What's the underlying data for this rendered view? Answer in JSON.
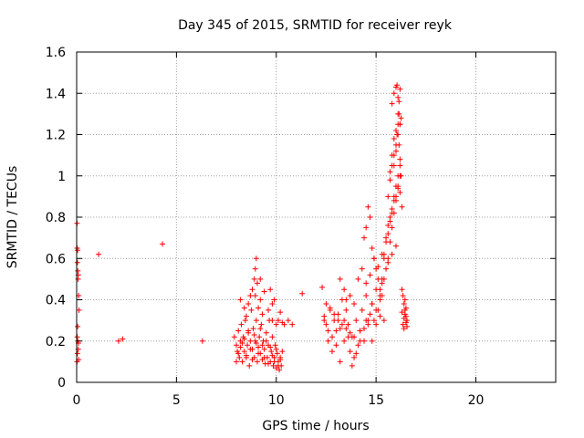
{
  "chart_data": {
    "type": "scatter",
    "title": "Day 345 of 2015, SRMTID for receiver reyk",
    "xlabel": "GPS time / hours",
    "ylabel": "SRMTID / TECUs",
    "xlim": [
      0,
      24
    ],
    "ylim": [
      0,
      1.6
    ],
    "xticks": [
      0,
      5,
      10,
      15,
      20
    ],
    "xtick_labels": [
      "0",
      "5",
      "10",
      "15",
      "20"
    ],
    "yticks": [
      0,
      0.2,
      0.4,
      0.6,
      0.8,
      1.0,
      1.2,
      1.4,
      1.6
    ],
    "ytick_labels": [
      "0",
      "0.2",
      "0.4",
      "0.6",
      "0.8",
      "1",
      "1.2",
      "1.4",
      "1.6"
    ],
    "grid": true,
    "marker": "+",
    "series": [
      {
        "name": "SRMTID",
        "color": "#ff0000",
        "x": [
          0.02,
          0.03,
          0.05,
          0.04,
          0.06,
          0.08,
          0.07,
          0.1,
          0.12,
          0.05,
          0.03,
          0.06,
          0.09,
          0.08,
          0.04,
          0.1,
          0.02,
          1.1,
          2.1,
          2.3,
          4.3,
          6.3,
          7.9,
          8.0,
          8.05,
          8.1,
          8.15,
          8.2,
          8.25,
          8.3,
          8.35,
          8.4,
          8.45,
          8.5,
          8.55,
          8.6,
          8.65,
          8.7,
          8.75,
          8.8,
          8.85,
          8.9,
          8.95,
          9.0,
          9.05,
          9.1,
          9.15,
          9.2,
          9.25,
          9.3,
          9.35,
          9.4,
          9.45,
          9.5,
          9.55,
          9.6,
          9.65,
          9.7,
          9.75,
          9.8,
          9.85,
          9.9,
          9.95,
          10.0,
          10.05,
          10.1,
          10.15,
          10.2,
          10.25,
          10.3,
          8.0,
          8.1,
          8.2,
          8.3,
          8.4,
          8.5,
          8.6,
          8.7,
          8.8,
          8.9,
          9.0,
          9.1,
          9.2,
          9.3,
          9.4,
          9.5,
          9.6,
          9.7,
          9.8,
          9.9,
          10.0,
          10.1,
          10.2,
          8.5,
          8.6,
          8.8,
          8.9,
          8.95,
          9.0,
          9.05,
          8.95,
          9.1,
          9.2,
          9.3,
          9.6,
          9.7,
          9.8,
          9.9,
          10.0,
          10.1,
          10.3,
          10.4,
          8.2,
          8.4,
          8.7,
          9.2,
          9.4,
          9.8,
          10.2,
          10.6,
          10.8,
          11.3,
          12.3,
          12.4,
          12.5,
          12.6,
          12.7,
          12.8,
          12.9,
          13.0,
          13.1,
          13.2,
          13.3,
          13.4,
          13.5,
          13.6,
          13.7,
          13.8,
          13.9,
          14.0,
          14.1,
          14.2,
          14.3,
          14.4,
          14.5,
          14.6,
          14.7,
          14.8,
          14.9,
          15.0,
          15.1,
          15.2,
          15.3,
          15.4,
          12.4,
          12.6,
          12.8,
          13.0,
          13.2,
          13.4,
          13.6,
          13.8,
          14.0,
          14.2,
          14.4,
          14.6,
          14.8,
          15.0,
          15.2,
          13.2,
          13.4,
          13.5,
          13.7,
          13.9,
          14.1,
          14.3,
          14.5,
          14.7,
          14.9,
          15.1,
          15.3,
          12.5,
          12.7,
          12.9,
          13.1,
          13.3,
          13.5,
          13.7,
          13.9,
          14.4,
          14.5,
          14.6,
          14.7,
          14.8,
          14.9,
          15.0,
          15.1,
          15.2,
          15.3,
          15.4,
          15.5,
          15.6,
          15.7,
          15.8,
          15.9,
          16.0,
          16.1,
          16.2,
          16.3,
          15.3,
          15.4,
          15.5,
          15.6,
          15.7,
          15.8,
          15.9,
          16.0,
          16.1,
          16.2,
          15.5,
          15.6,
          15.7,
          15.8,
          15.9,
          16.0,
          16.1,
          16.2,
          15.6,
          15.7,
          15.8,
          15.9,
          16.0,
          16.1,
          16.2,
          16.25,
          15.7,
          15.8,
          15.9,
          16.0,
          16.1,
          16.15,
          16.2,
          15.8,
          15.9,
          16.0,
          16.05,
          16.1,
          16.15,
          16.2,
          15.9,
          16.0,
          16.05,
          16.1,
          16.15,
          16.2,
          16.25,
          16.3,
          16.35,
          16.4,
          16.45,
          16.5,
          16.55,
          16.35,
          16.4,
          16.45,
          16.5,
          16.3,
          16.4,
          16.5,
          16.55,
          16.45,
          15.0,
          15.2,
          15.4,
          15.6,
          15.8,
          16.0,
          14.2,
          14.5,
          14.8
        ],
        "y": [
          0.77,
          0.65,
          0.64,
          0.58,
          0.54,
          0.52,
          0.5,
          0.42,
          0.35,
          0.27,
          0.22,
          0.2,
          0.19,
          0.16,
          0.14,
          0.11,
          0.1,
          0.62,
          0.2,
          0.21,
          0.67,
          0.2,
          0.22,
          0.18,
          0.15,
          0.25,
          0.12,
          0.2,
          0.28,
          0.1,
          0.22,
          0.15,
          0.3,
          0.12,
          0.18,
          0.24,
          0.08,
          0.2,
          0.35,
          0.16,
          0.26,
          0.12,
          0.2,
          0.3,
          0.1,
          0.17,
          0.22,
          0.14,
          0.28,
          0.11,
          0.2,
          0.16,
          0.09,
          0.24,
          0.12,
          0.18,
          0.3,
          0.1,
          0.15,
          0.22,
          0.08,
          0.12,
          0.18,
          0.07,
          0.14,
          0.1,
          0.06,
          0.12,
          0.08,
          0.15,
          0.1,
          0.14,
          0.17,
          0.19,
          0.21,
          0.13,
          0.25,
          0.16,
          0.11,
          0.23,
          0.19,
          0.14,
          0.26,
          0.18,
          0.12,
          0.2,
          0.09,
          0.17,
          0.13,
          0.1,
          0.16,
          0.08,
          0.11,
          0.32,
          0.38,
          0.45,
          0.5,
          0.55,
          0.6,
          0.48,
          0.42,
          0.36,
          0.4,
          0.33,
          0.35,
          0.45,
          0.3,
          0.4,
          0.28,
          0.3,
          0.29,
          0.28,
          0.4,
          0.36,
          0.42,
          0.5,
          0.44,
          0.38,
          0.34,
          0.3,
          0.28,
          0.43,
          0.46,
          0.32,
          0.28,
          0.25,
          0.36,
          0.22,
          0.3,
          0.18,
          0.33,
          0.26,
          0.4,
          0.2,
          0.35,
          0.28,
          0.15,
          0.22,
          0.12,
          0.3,
          0.18,
          0.25,
          0.35,
          0.2,
          0.42,
          0.28,
          0.33,
          0.38,
          0.3,
          0.45,
          0.35,
          0.4,
          0.48,
          0.3,
          0.3,
          0.2,
          0.15,
          0.25,
          0.1,
          0.3,
          0.22,
          0.08,
          0.14,
          0.2,
          0.26,
          0.3,
          0.2,
          0.28,
          0.32,
          0.5,
          0.45,
          0.4,
          0.42,
          0.38,
          0.5,
          0.55,
          0.48,
          0.52,
          0.6,
          0.56,
          0.62,
          0.38,
          0.35,
          0.33,
          0.3,
          0.28,
          0.26,
          0.24,
          0.22,
          0.7,
          0.75,
          0.85,
          0.8,
          0.65,
          0.6,
          0.55,
          0.5,
          0.45,
          0.42,
          0.6,
          0.68,
          0.72,
          0.78,
          0.82,
          0.88,
          0.9,
          0.95,
          0.92,
          0.85,
          0.5,
          0.62,
          0.7,
          0.76,
          0.8,
          0.84,
          0.9,
          0.95,
          1.0,
          1.05,
          0.55,
          0.6,
          0.68,
          0.75,
          0.82,
          0.88,
          0.94,
          1.0,
          0.9,
          0.98,
          1.05,
          1.1,
          1.15,
          1.2,
          1.25,
          1.28,
          1.02,
          1.1,
          1.18,
          1.22,
          1.3,
          1.36,
          1.42,
          1.35,
          1.4,
          1.43,
          1.44,
          1.38,
          1.3,
          1.25,
          1.05,
          1.12,
          1.2,
          1.25,
          1.15,
          1.08,
          1.0,
          0.45,
          0.42,
          0.38,
          0.35,
          0.32,
          0.3,
          0.28,
          0.26,
          0.4,
          0.36,
          0.34,
          0.31,
          0.29,
          0.27,
          0.33,
          0.35,
          0.42,
          0.5,
          0.58,
          0.62,
          0.66,
          0.25,
          0.3,
          0.38
        ]
      }
    ]
  }
}
